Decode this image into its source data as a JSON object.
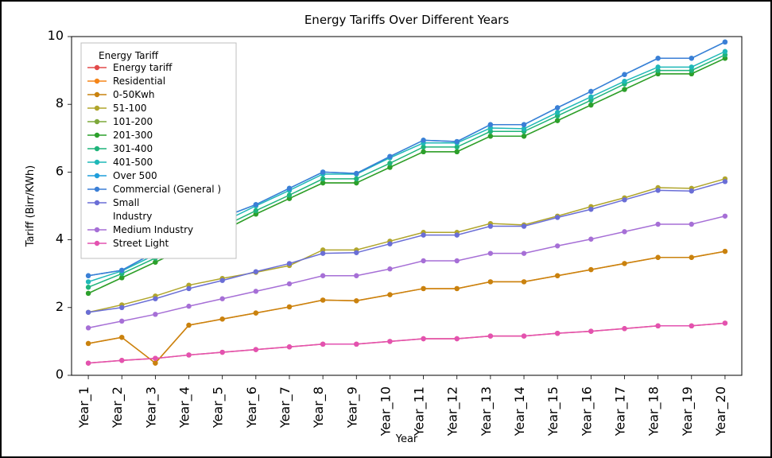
{
  "chart": {
    "type": "line",
    "title": "Energy Tariffs Over Different Years",
    "title_fontsize": 15,
    "xlabel": "Year",
    "ylabel": "Tariff (Birr/KWh)",
    "label_fontsize": 13,
    "tick_fontsize": 12,
    "background_color": "#ffffff",
    "frame_border_color": "#000000",
    "spine_color": "#000000",
    "marker": "circle",
    "marker_size": 3.2,
    "line_width": 1.5,
    "ylim": [
      0,
      10
    ],
    "ytick_step": 2,
    "categories": [
      "Year_1",
      "Year_2",
      "Year_3",
      "Year_4",
      "Year_5",
      "Year_6",
      "Year_7",
      "Year_8",
      "Year_9",
      "Year_10",
      "Year_11",
      "Year_12",
      "Year_13",
      "Year_14",
      "Year_15",
      "Year_16",
      "Year_17",
      "Year_18",
      "Year_19",
      "Year_20"
    ],
    "legend": {
      "title": "Energy Tariff",
      "position": "upper-left",
      "frame_color": "#bfbfbf",
      "bg_color": "#ffffff"
    },
    "series": [
      {
        "name": "Energy tariff",
        "color": "#e24a4a",
        "values": [
          0.36,
          0.44,
          0.5,
          0.6,
          0.68,
          0.76,
          0.84,
          0.92,
          0.92,
          1.0,
          1.08,
          1.08,
          1.16,
          1.16,
          1.24,
          1.3,
          1.38,
          1.46,
          1.46,
          1.54
        ]
      },
      {
        "name": "Residential",
        "color": "#f58518",
        "values": [
          0.94,
          1.12,
          0.36,
          1.48,
          1.66,
          1.84,
          2.02,
          2.22,
          2.2,
          2.38,
          2.56,
          2.56,
          2.76,
          2.76,
          2.94,
          3.12,
          3.3,
          3.48,
          3.48,
          3.66
        ]
      },
      {
        "name": "0-50Kwh",
        "color": "#c9820e",
        "values": [
          0.94,
          1.12,
          0.36,
          1.48,
          1.66,
          1.84,
          2.02,
          2.22,
          2.2,
          2.38,
          2.56,
          2.56,
          2.76,
          2.76,
          2.94,
          3.12,
          3.3,
          3.48,
          3.48,
          3.66
        ]
      },
      {
        "name": "51-100",
        "color": "#b0a52c",
        "values": [
          1.86,
          2.08,
          2.34,
          2.66,
          2.86,
          3.04,
          3.24,
          3.7,
          3.7,
          3.96,
          4.22,
          4.22,
          4.48,
          4.44,
          4.7,
          4.98,
          5.24,
          5.54,
          5.52,
          5.8
        ]
      },
      {
        "name": "101-200",
        "color": "#7da83a",
        "values": [
          2.42,
          2.88,
          3.34,
          3.8,
          4.26,
          4.76,
          5.22,
          5.68,
          5.68,
          6.14,
          6.6,
          6.6,
          7.06,
          7.06,
          7.52,
          7.98,
          8.44,
          8.9,
          8.9,
          9.36
        ]
      },
      {
        "name": "201-300",
        "color": "#2ca02c",
        "values": [
          2.42,
          2.88,
          3.34,
          3.8,
          4.26,
          4.76,
          5.22,
          5.68,
          5.68,
          6.14,
          6.6,
          6.6,
          7.06,
          7.06,
          7.52,
          7.98,
          8.44,
          8.9,
          8.9,
          9.36
        ]
      },
      {
        "name": "301-400",
        "color": "#1fb47a",
        "values": [
          2.6,
          3.0,
          3.46,
          3.92,
          4.38,
          4.86,
          5.32,
          5.8,
          5.8,
          6.26,
          6.74,
          6.74,
          7.2,
          7.2,
          7.66,
          8.12,
          8.6,
          9.0,
          9.0,
          9.46
        ]
      },
      {
        "name": "401-500",
        "color": "#1fb8b8",
        "values": [
          2.76,
          3.08,
          3.56,
          4.04,
          4.52,
          5.0,
          5.46,
          5.94,
          5.94,
          6.42,
          6.86,
          6.86,
          7.3,
          7.28,
          7.76,
          8.22,
          8.68,
          9.1,
          9.1,
          9.56
        ]
      },
      {
        "name": "Over 500",
        "color": "#1f9edb",
        "values": [
          2.94,
          3.1,
          3.64,
          4.16,
          4.66,
          5.04,
          5.52,
          6.0,
          5.96,
          6.46,
          6.94,
          6.9,
          7.4,
          7.4,
          7.9,
          8.38,
          8.88,
          9.36,
          9.36,
          9.84
        ]
      },
      {
        "name": "Commercial (General )",
        "color": "#3b7fd6",
        "values": [
          2.94,
          3.1,
          3.64,
          4.16,
          4.66,
          5.04,
          5.52,
          6.0,
          5.96,
          6.46,
          6.94,
          6.9,
          7.4,
          7.4,
          7.9,
          8.38,
          8.88,
          9.36,
          9.36,
          9.84
        ]
      },
      {
        "name": "Small Industry",
        "color": "#6a6ed6",
        "values": [
          1.86,
          2.0,
          2.26,
          2.56,
          2.8,
          3.06,
          3.3,
          3.6,
          3.62,
          3.88,
          4.14,
          4.14,
          4.4,
          4.4,
          4.66,
          4.9,
          5.18,
          5.46,
          5.44,
          5.72
        ]
      },
      {
        "name": "Medium Industry",
        "color": "#a66fd6",
        "values": [
          1.4,
          1.6,
          1.8,
          2.04,
          2.26,
          2.48,
          2.7,
          2.94,
          2.94,
          3.14,
          3.38,
          3.38,
          3.6,
          3.6,
          3.82,
          4.02,
          4.24,
          4.46,
          4.46,
          4.7
        ]
      },
      {
        "name": "Street Light",
        "color": "#e352b0",
        "values": [
          0.36,
          0.44,
          0.5,
          0.6,
          0.68,
          0.76,
          0.84,
          0.92,
          0.92,
          1.0,
          1.08,
          1.08,
          1.16,
          1.16,
          1.24,
          1.3,
          1.38,
          1.46,
          1.46,
          1.54
        ]
      }
    ]
  }
}
